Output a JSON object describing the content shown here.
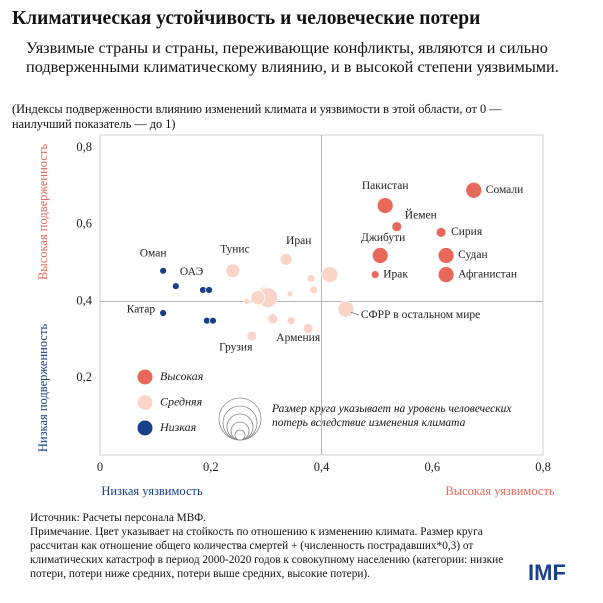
{
  "chart_data": {
    "type": "bubble",
    "title": "Климатическая устойчивость и человеческие потери",
    "subtitle": "Уязвимые страны и страны, переживающие конфликты, являются и сильно подверженными климатическому влиянию, и в высокой степени уязвимыми.",
    "note": "(Индексы подверженности влиянию изменений климата и уязвимости в этой области, от 0 — наилучший показатель — до 1)",
    "y_label_high": "Высокая подверженность",
    "y_label_low": "Низкая подверженность",
    "x_label_low": "Низкая уязвимость",
    "x_label_high": "Высокая уязвимость",
    "size_note": "Размер круга указывает на уровень человеческих потерь вследствие изменения климата",
    "source": "Источник: Расчеты персонала МВФ.",
    "footnote": "Примечание. Цвет указывает на стойкость по отношению к изменению климата. Размер круга рассчитан как отношение общего количества смертей + (численность пострадавших*0,3) от климатических катастроф в период 2000-2020 годов к совокупному населению (категории: низкие потери, потери ниже средних, потери выше средних, высокие потери).",
    "logo": "IMF",
    "xlim": [
      0,
      0.8
    ],
    "xticks": [
      0,
      {
        "value": 0.2,
        "label": "0,2"
      },
      {
        "value": 0.4,
        "label": "0,4"
      },
      {
        "value": 0.6,
        "label": "0,6"
      },
      {
        "value": 0.8,
        "label": "0,8"
      }
    ],
    "ylim": [
      0,
      0.8
    ],
    "yticks": [
      {
        "value": 0.2,
        "label": "0,2"
      },
      {
        "value": 0.4,
        "label": "0,4"
      },
      {
        "value": 0.6,
        "label": "0,6"
      },
      {
        "value": 0.8,
        "label": "0,8"
      }
    ],
    "grid": false,
    "series": [
      {
        "name": "Высокая",
        "color": "#e8685a",
        "labels": [
          "Пакистан",
          "Сомали",
          "Йемен",
          "Сирия",
          "Джибути",
          "Судан",
          "Ирак",
          "Афганистан"
        ],
        "x": [
          0.515,
          0.675,
          0.536,
          0.616,
          0.506,
          0.625,
          0.497,
          0.625
        ],
        "values": [
          0.65,
          0.69,
          0.595,
          0.58,
          0.52,
          0.52,
          0.47,
          0.47
        ],
        "sizes": [
          8,
          8,
          5,
          5,
          8,
          8,
          4,
          8
        ]
      },
      {
        "name": "Средняя",
        "color": "#fad5c7",
        "labels": [
          "Тунис",
          "Иран",
          null,
          null,
          null,
          null,
          null,
          null,
          null,
          null,
          "Грузия",
          "Армения",
          null,
          "СФРР в остальном мире",
          null
        ],
        "x": [
          0.24,
          0.336,
          0.415,
          0.381,
          0.298,
          0.303,
          0.285,
          0.265,
          0.343,
          0.312,
          0.274,
          0.376,
          0.345,
          0.444,
          0.386
        ],
        "values": [
          0.48,
          0.51,
          0.47,
          0.46,
          0.42,
          0.41,
          0.41,
          0.4,
          0.42,
          0.355,
          0.31,
          0.33,
          0.35,
          0.38,
          0.43
        ],
        "sizes": [
          7,
          6,
          8,
          4,
          7,
          10,
          7,
          3,
          3,
          5,
          5,
          5,
          4,
          8,
          4
        ]
      },
      {
        "name": "Низкая",
        "color": "#173f8a",
        "labels": [
          "Оман",
          "ОАЭ",
          null,
          null,
          "Катар",
          null,
          null
        ],
        "x": [
          0.114,
          0.137,
          0.186,
          0.197,
          0.114,
          0.193,
          0.204
        ],
        "values": [
          0.48,
          0.44,
          0.43,
          0.43,
          0.37,
          0.35,
          0.35
        ],
        "sizes": [
          3.5,
          3.5,
          3.5,
          3.5,
          3.5,
          3.5,
          3.5
        ]
      }
    ]
  }
}
